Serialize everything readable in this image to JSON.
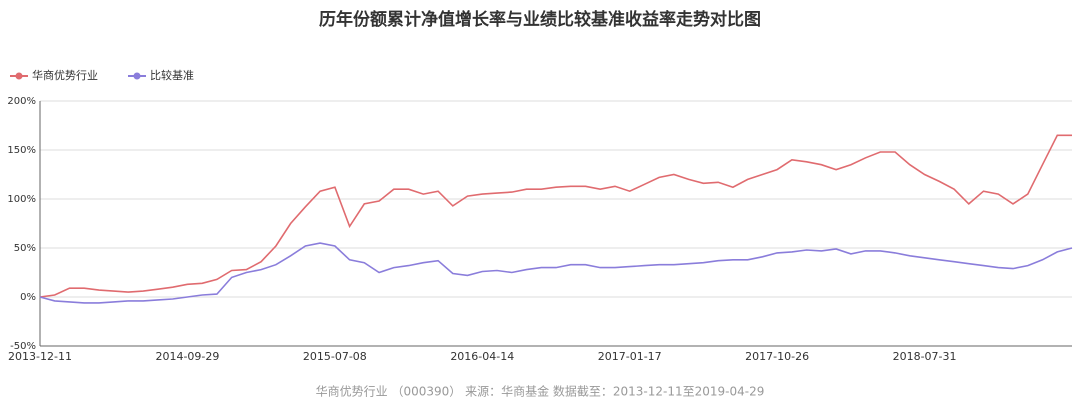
{
  "chart_data": {
    "type": "line",
    "title": "历年份额累计净值增长率与业绩比较基准收益率走势对比图",
    "source": "华商优势行业 （000390） 来源：华商基金 数据截至：2013-12-11至2019-04-29",
    "categories": [
      "2013-12-11",
      null,
      null,
      null,
      null,
      null,
      null,
      null,
      null,
      null,
      "2014-09-29",
      null,
      null,
      null,
      null,
      null,
      null,
      null,
      null,
      null,
      "2015-07-08",
      null,
      null,
      null,
      null,
      null,
      null,
      null,
      null,
      null,
      "2016-04-14",
      null,
      null,
      null,
      null,
      null,
      null,
      null,
      null,
      null,
      "2017-01-17",
      null,
      null,
      null,
      null,
      null,
      null,
      null,
      null,
      null,
      "2017-10-26",
      null,
      null,
      null,
      null,
      null,
      null,
      null,
      null,
      null,
      "2018-07-31",
      null,
      null,
      null,
      null,
      null,
      null,
      null,
      null,
      null,
      null
    ],
    "series": [
      {
        "name": "华商优势行业",
        "color": "#e06b6f",
        "values": [
          0,
          2,
          9,
          9,
          7,
          6,
          5,
          6,
          8,
          10,
          13,
          14,
          18,
          27,
          28,
          36,
          52,
          75,
          92,
          108,
          112,
          72,
          95,
          98,
          110,
          110,
          105,
          108,
          93,
          103,
          105,
          106,
          107,
          110,
          110,
          112,
          113,
          113,
          110,
          113,
          108,
          115,
          122,
          125,
          120,
          116,
          117,
          112,
          120,
          125,
          130,
          140,
          138,
          135,
          130,
          135,
          142,
          148,
          148,
          135,
          125,
          118,
          110,
          95,
          108,
          105,
          95,
          105,
          135,
          165,
          165
        ]
      },
      {
        "name": "比较基准",
        "color": "#8a7ddb",
        "values": [
          0,
          -4,
          -5,
          -6,
          -6,
          -5,
          -4,
          -4,
          -3,
          -2,
          0,
          2,
          3,
          20,
          25,
          28,
          33,
          42,
          52,
          55,
          52,
          38,
          35,
          25,
          30,
          32,
          35,
          37,
          24,
          22,
          26,
          27,
          25,
          28,
          30,
          30,
          33,
          33,
          30,
          30,
          31,
          32,
          33,
          33,
          34,
          35,
          37,
          38,
          38,
          41,
          45,
          46,
          48,
          47,
          49,
          44,
          47,
          47,
          45,
          42,
          40,
          38,
          36,
          34,
          32,
          30,
          29,
          32,
          38,
          46,
          50
        ]
      }
    ],
    "ylim": [
      -50,
      200
    ],
    "yticks": [
      {
        "value": -50,
        "label": "-50%"
      },
      {
        "value": 0,
        "label": "0%"
      },
      {
        "value": 50,
        "label": "50%"
      },
      {
        "value": 100,
        "label": "100%"
      },
      {
        "value": 150,
        "label": "150%"
      },
      {
        "value": 200,
        "label": "200%"
      }
    ],
    "grid": true
  }
}
